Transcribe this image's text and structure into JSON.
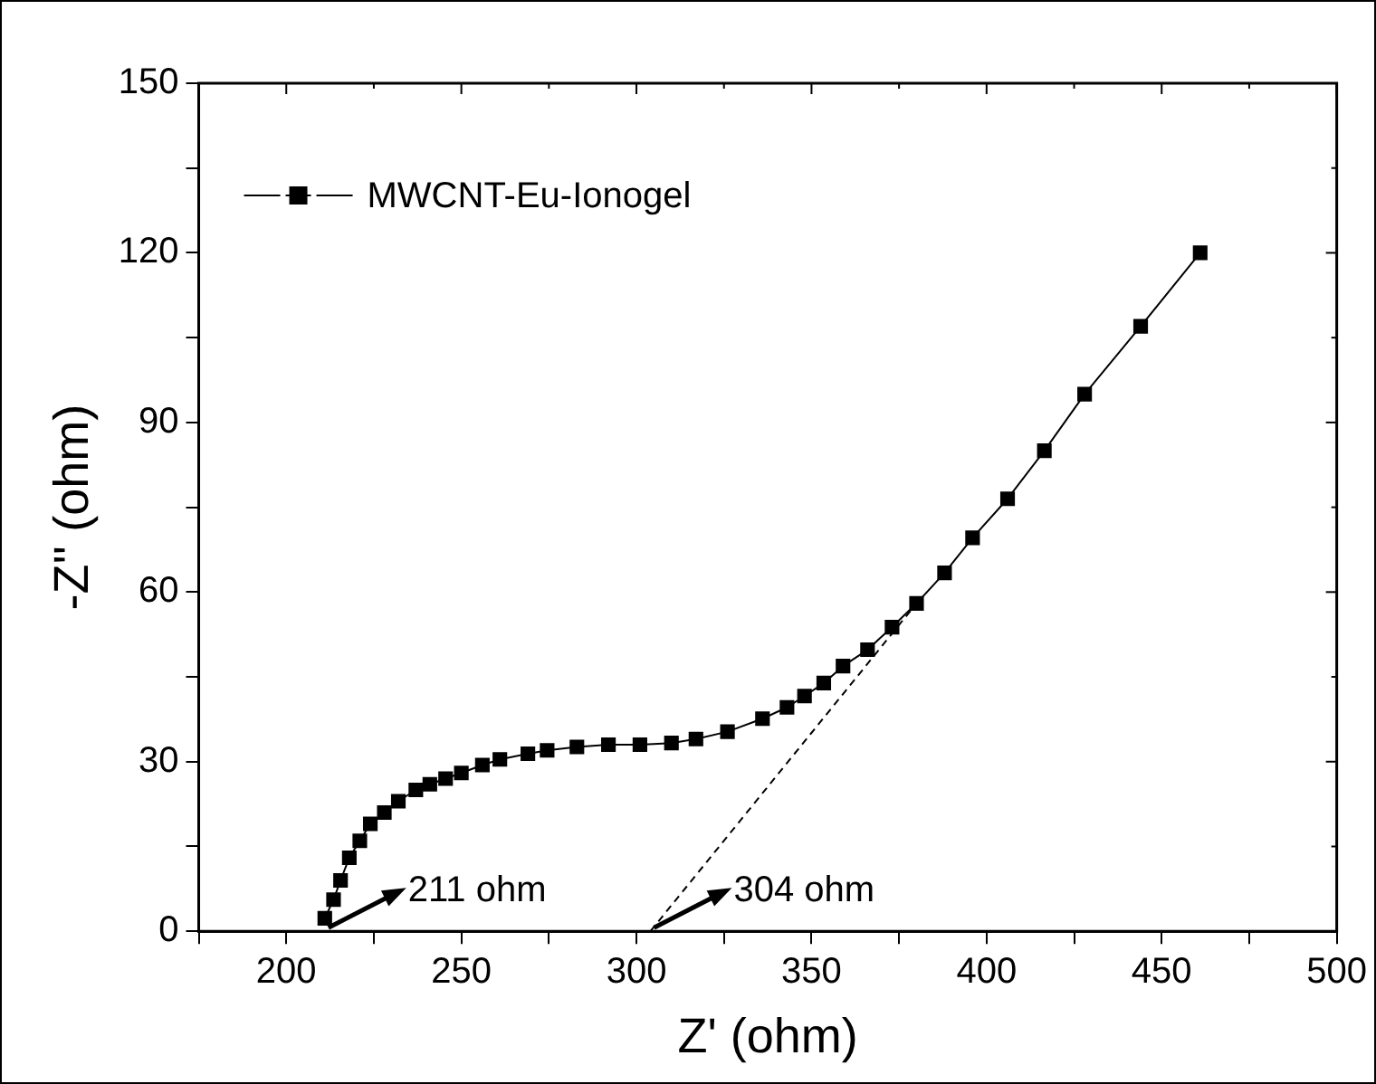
{
  "chart_data": {
    "type": "line",
    "xlabel": "Z' (ohm)",
    "ylabel": "-Z'' (ohm)",
    "xlim": [
      175,
      500
    ],
    "xticks": [
      {
        "value": 175,
        "label": null
      },
      200,
      {
        "value": 225,
        "label": null
      },
      250,
      {
        "value": 275,
        "label": null
      },
      300,
      {
        "value": 325,
        "label": null
      },
      350,
      {
        "value": 375,
        "label": null
      },
      400,
      {
        "value": 425,
        "label": null
      },
      450,
      {
        "value": 475,
        "label": null
      },
      500
    ],
    "ylim": [
      0,
      150
    ],
    "yticks": [
      0,
      {
        "value": 15,
        "label": null
      },
      30,
      {
        "value": 45,
        "label": null
      },
      60,
      {
        "value": 75,
        "label": null
      },
      90,
      {
        "value": 105,
        "label": null
      },
      120,
      {
        "value": 135,
        "label": null
      },
      150
    ],
    "grid": false,
    "legend": "top left",
    "marker": "square",
    "series": [
      {
        "name": "MWCNT-Eu-Ionogel",
        "color": "#000000",
        "line_style": "solid",
        "x": [
          211,
          213.5,
          215.5,
          218,
          221,
          224,
          228,
          232,
          237,
          241,
          245.5,
          250,
          256,
          261,
          269,
          274.5,
          283,
          292,
          301,
          310,
          317,
          326,
          336,
          343,
          348,
          353.5,
          359,
          366,
          373,
          380,
          388,
          396,
          406,
          416.5,
          428,
          444,
          461
        ],
        "values": [
          2.3,
          5.6,
          9,
          13,
          16,
          19,
          21,
          23,
          25,
          26,
          27,
          28,
          29.4,
          30.4,
          31.4,
          32,
          32.6,
          33,
          33,
          33.3,
          34,
          35.3,
          37.6,
          39.6,
          41.6,
          43.9,
          46.9,
          49.8,
          53.8,
          58,
          63.4,
          69.6,
          76.5,
          85,
          95,
          107,
          120
        ]
      },
      {
        "type": "line",
        "color": "#000000",
        "line_style": "dashed",
        "marker": "none",
        "x": [
          304,
          380
        ],
        "values": [
          0,
          58
        ]
      }
    ],
    "annotations": [
      {
        "text": "211 ohm",
        "x": 211,
        "y": 0
      },
      {
        "text": "304 ohm",
        "x": 304,
        "y": 0
      }
    ]
  }
}
